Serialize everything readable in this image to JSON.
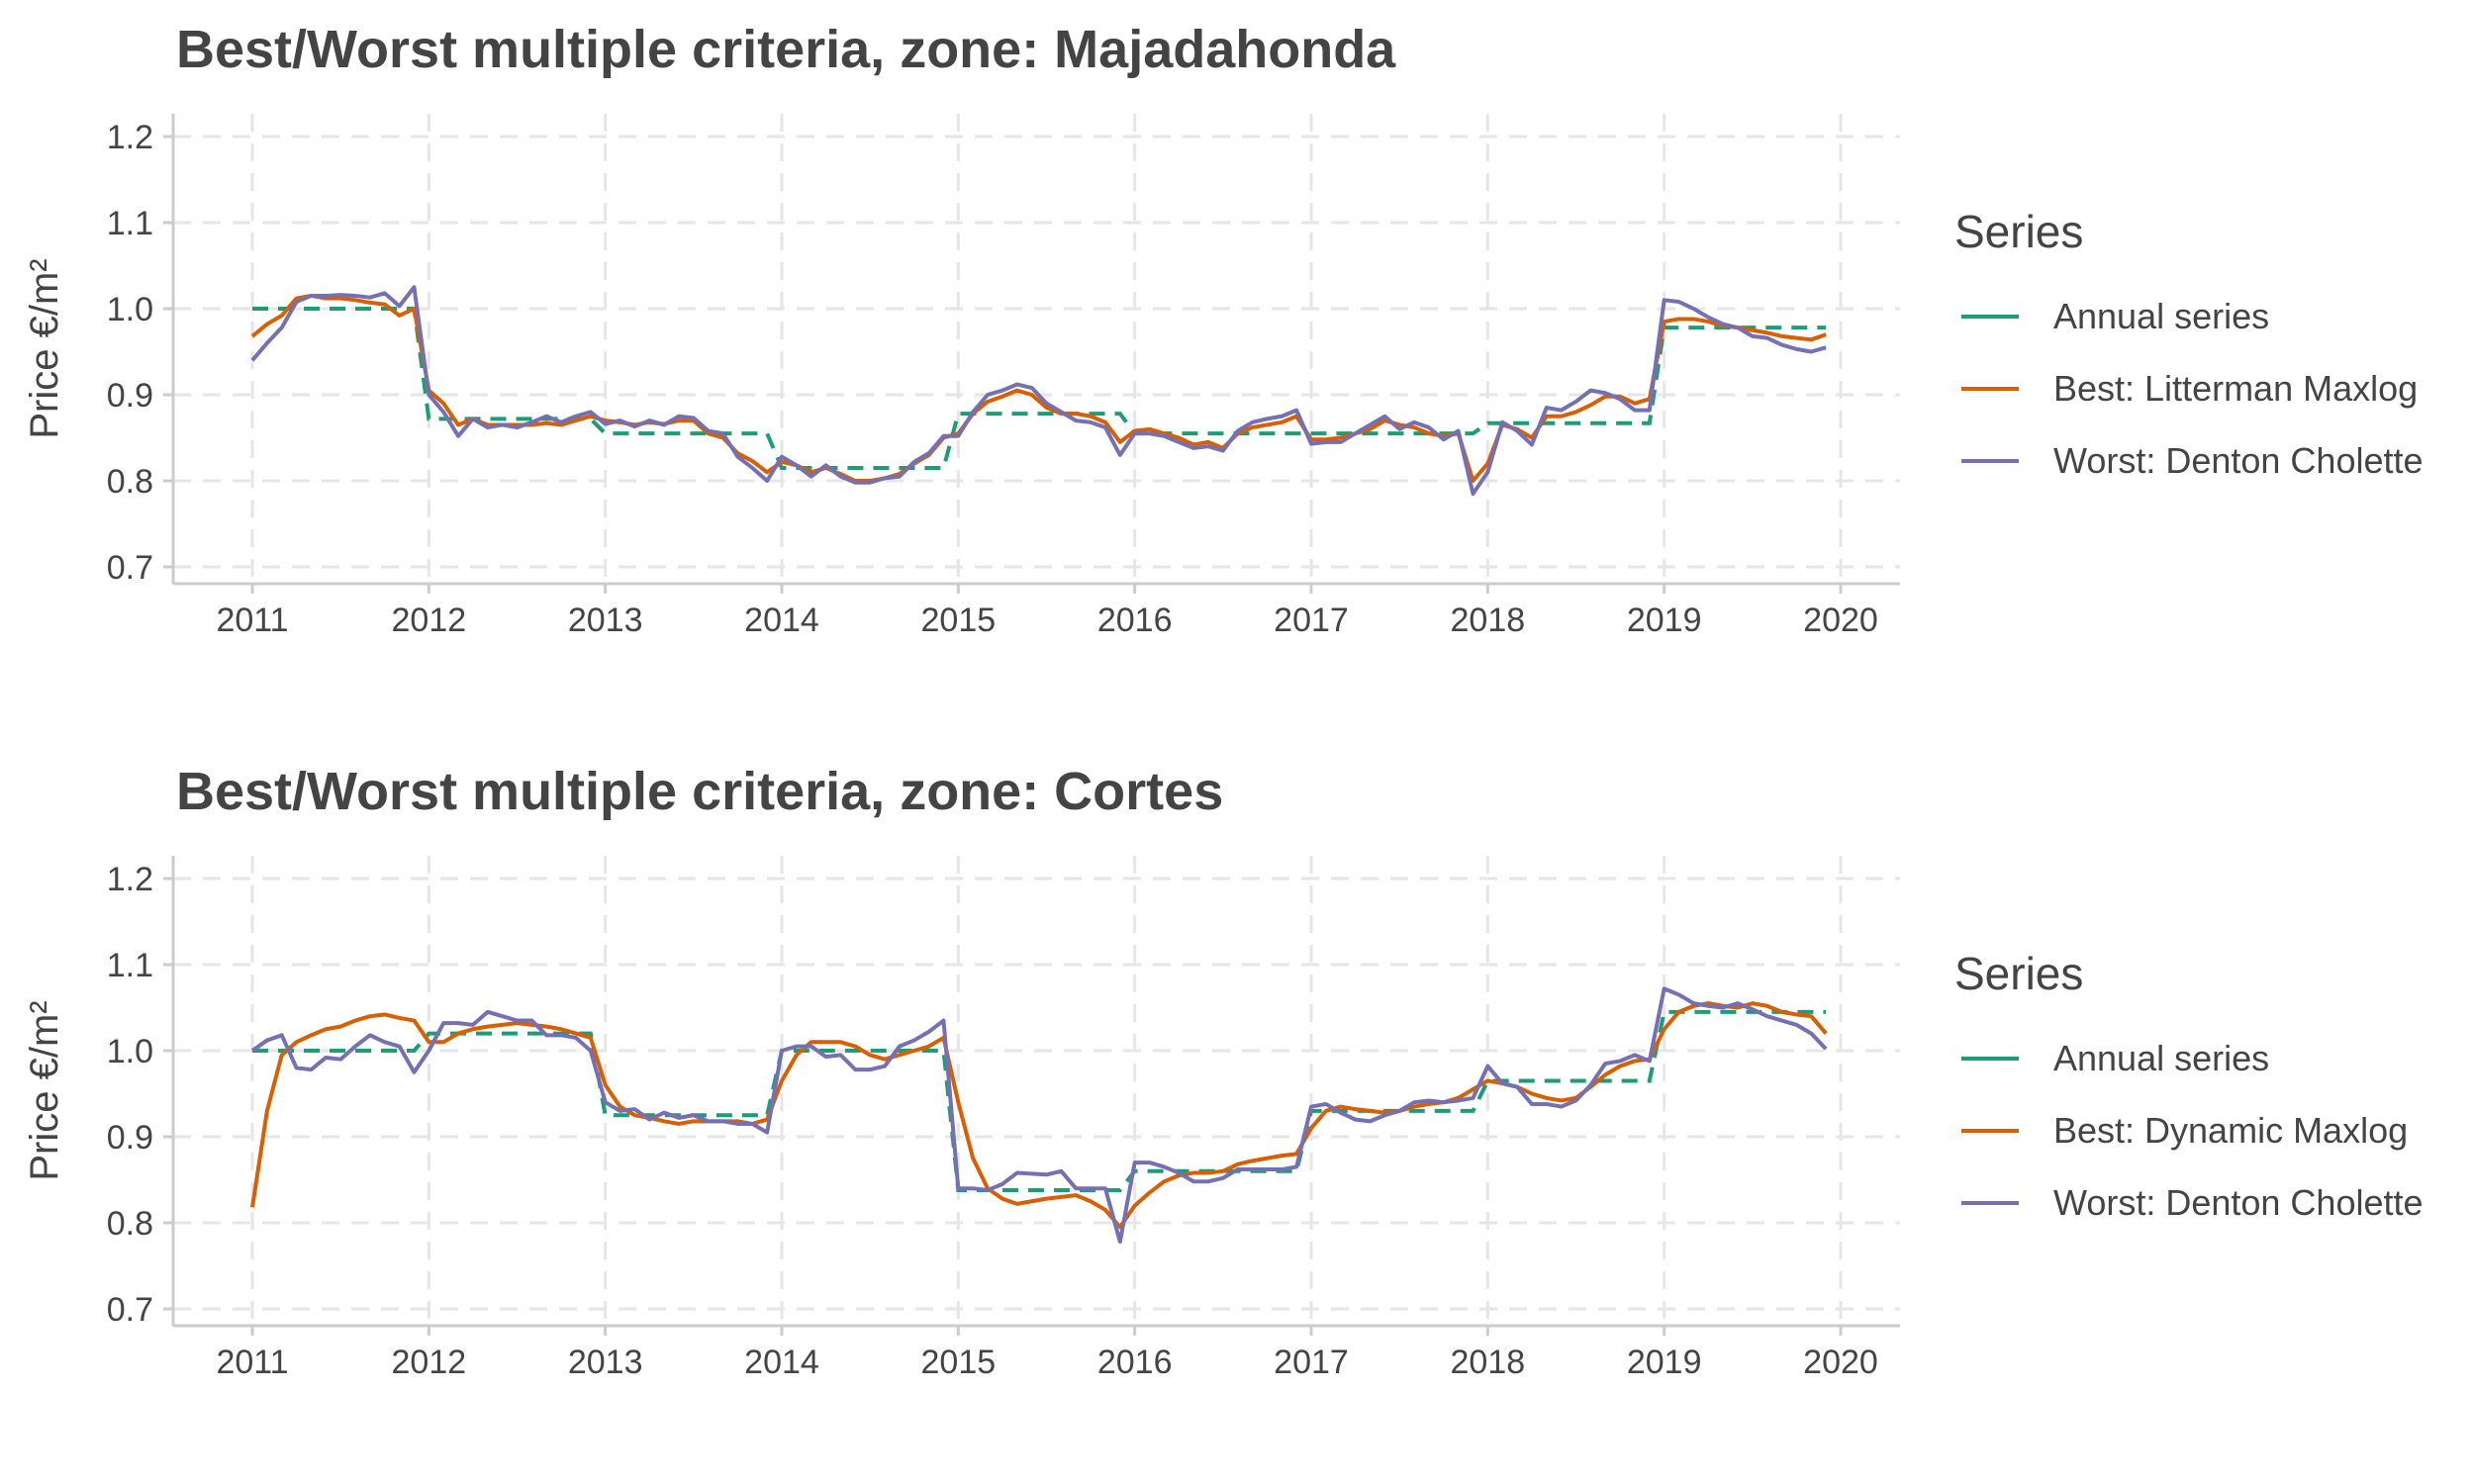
{
  "chart_data": [
    {
      "type": "line",
      "title": "Best/Worst multiple criteria, zone: Majadahonda",
      "xlabel": "",
      "ylabel": "Price €/m²",
      "ylim": [
        0.7,
        1.2
      ],
      "xlim": [
        2011,
        2020
      ],
      "yticks": [
        "0.7",
        "0.8",
        "0.9",
        "1.0",
        "1.1",
        "1.2"
      ],
      "xticks": [
        "2011",
        "2012",
        "2013",
        "2014",
        "2015",
        "2016",
        "2017",
        "2018",
        "2019",
        "2020"
      ],
      "grid": true,
      "legend_title": "Series",
      "legend_position": "right",
      "colors": {
        "annual": "#1b9e77",
        "best": "#d95f02",
        "worst": "#7570b3"
      },
      "annual_series": {
        "name": "Annual series",
        "years": [
          2011,
          2012,
          2013,
          2014,
          2015,
          2016,
          2017,
          2018,
          2019
        ],
        "values": [
          1.0,
          0.872,
          0.855,
          0.815,
          0.878,
          0.855,
          0.855,
          0.867,
          0.978
        ]
      },
      "series": [
        {
          "name": "Best: Litterman Maxlog",
          "values": [
            0.968,
            0.982,
            0.992,
            1.012,
            1.015,
            1.012,
            1.012,
            1.01,
            1.007,
            1.005,
            0.992,
            1.0,
            0.905,
            0.89,
            0.865,
            0.872,
            0.865,
            0.865,
            0.865,
            0.865,
            0.867,
            0.865,
            0.87,
            0.875,
            0.87,
            0.868,
            0.865,
            0.868,
            0.866,
            0.87,
            0.87,
            0.855,
            0.85,
            0.832,
            0.823,
            0.81,
            0.822,
            0.818,
            0.81,
            0.815,
            0.808,
            0.8,
            0.8,
            0.803,
            0.808,
            0.82,
            0.83,
            0.85,
            0.855,
            0.878,
            0.892,
            0.898,
            0.905,
            0.9,
            0.885,
            0.878,
            0.878,
            0.875,
            0.868,
            0.845,
            0.858,
            0.86,
            0.855,
            0.85,
            0.842,
            0.845,
            0.838,
            0.855,
            0.862,
            0.865,
            0.868,
            0.875,
            0.848,
            0.848,
            0.85,
            0.855,
            0.86,
            0.87,
            0.865,
            0.862,
            0.855,
            0.852,
            0.855,
            0.8,
            0.82,
            0.865,
            0.86,
            0.85,
            0.875,
            0.875,
            0.88,
            0.888,
            0.898,
            0.898,
            0.89,
            0.895,
            0.985,
            0.988,
            0.988,
            0.985,
            0.98,
            0.978,
            0.975,
            0.972,
            0.968,
            0.966,
            0.964,
            0.97
          ]
        },
        {
          "name": "Worst: Denton Cholette",
          "values": [
            0.94,
            0.96,
            0.978,
            1.008,
            1.015,
            1.015,
            1.016,
            1.015,
            1.013,
            1.018,
            1.003,
            1.025,
            0.9,
            0.88,
            0.852,
            0.872,
            0.862,
            0.865,
            0.862,
            0.868,
            0.875,
            0.868,
            0.875,
            0.88,
            0.866,
            0.87,
            0.863,
            0.87,
            0.865,
            0.875,
            0.873,
            0.858,
            0.855,
            0.828,
            0.815,
            0.8,
            0.828,
            0.818,
            0.805,
            0.818,
            0.805,
            0.798,
            0.798,
            0.803,
            0.805,
            0.822,
            0.832,
            0.852,
            0.852,
            0.88,
            0.9,
            0.905,
            0.912,
            0.908,
            0.89,
            0.88,
            0.87,
            0.868,
            0.862,
            0.83,
            0.855,
            0.855,
            0.852,
            0.845,
            0.838,
            0.84,
            0.835,
            0.858,
            0.868,
            0.872,
            0.875,
            0.882,
            0.843,
            0.845,
            0.845,
            0.855,
            0.865,
            0.875,
            0.86,
            0.868,
            0.862,
            0.848,
            0.858,
            0.785,
            0.81,
            0.868,
            0.858,
            0.842,
            0.885,
            0.882,
            0.892,
            0.905,
            0.902,
            0.895,
            0.882,
            0.882,
            1.01,
            1.008,
            1.0,
            0.99,
            0.982,
            0.978,
            0.968,
            0.966,
            0.958,
            0.953,
            0.95,
            0.955
          ]
        }
      ]
    },
    {
      "type": "line",
      "title": "Best/Worst multiple criteria, zone: Cortes",
      "xlabel": "",
      "ylabel": "Price €/m²",
      "ylim": [
        0.7,
        1.2
      ],
      "xlim": [
        2011,
        2020
      ],
      "yticks": [
        "0.7",
        "0.8",
        "0.9",
        "1.0",
        "1.1",
        "1.2"
      ],
      "xticks": [
        "2011",
        "2012",
        "2013",
        "2014",
        "2015",
        "2016",
        "2017",
        "2018",
        "2019",
        "2020"
      ],
      "grid": true,
      "legend_title": "Series",
      "legend_position": "right",
      "colors": {
        "annual": "#1b9e77",
        "best": "#d95f02",
        "worst": "#7570b3"
      },
      "annual_series": {
        "name": "Annual series",
        "years": [
          2011,
          2012,
          2013,
          2014,
          2015,
          2016,
          2017,
          2018,
          2019
        ],
        "values": [
          1.0,
          1.02,
          0.925,
          1.0,
          0.838,
          0.86,
          0.93,
          0.965,
          1.045
        ]
      },
      "series": [
        {
          "name": "Best: Dynamic Maxlog",
          "values": [
            0.818,
            0.93,
            0.995,
            1.01,
            1.018,
            1.025,
            1.028,
            1.035,
            1.04,
            1.042,
            1.038,
            1.035,
            1.01,
            1.01,
            1.02,
            1.025,
            1.028,
            1.03,
            1.032,
            1.03,
            1.028,
            1.025,
            1.02,
            1.015,
            0.96,
            0.935,
            0.925,
            0.922,
            0.918,
            0.915,
            0.918,
            0.918,
            0.918,
            0.918,
            0.915,
            0.92,
            0.965,
            0.995,
            1.01,
            1.01,
            1.01,
            1.005,
            0.995,
            0.99,
            0.995,
            1.0,
            1.005,
            1.015,
            0.94,
            0.875,
            0.84,
            0.828,
            0.822,
            0.825,
            0.828,
            0.83,
            0.832,
            0.825,
            0.815,
            0.795,
            0.82,
            0.835,
            0.848,
            0.855,
            0.858,
            0.858,
            0.86,
            0.868,
            0.872,
            0.875,
            0.878,
            0.88,
            0.91,
            0.93,
            0.935,
            0.932,
            0.93,
            0.928,
            0.93,
            0.935,
            0.938,
            0.94,
            0.945,
            0.955,
            0.965,
            0.962,
            0.958,
            0.95,
            0.945,
            0.942,
            0.945,
            0.958,
            0.972,
            0.982,
            0.988,
            0.99,
            1.025,
            1.045,
            1.052,
            1.055,
            1.052,
            1.05,
            1.055,
            1.052,
            1.045,
            1.042,
            1.04,
            1.02
          ]
        },
        {
          "name": "Worst: Denton Cholette",
          "values": [
            1.0,
            1.012,
            1.018,
            0.98,
            0.978,
            0.992,
            0.99,
            1.005,
            1.018,
            1.01,
            1.005,
            0.975,
            1.0,
            1.032,
            1.032,
            1.03,
            1.045,
            1.04,
            1.035,
            1.035,
            1.018,
            1.018,
            1.015,
            1.0,
            0.94,
            0.93,
            0.932,
            0.92,
            0.928,
            0.922,
            0.925,
            0.918,
            0.918,
            0.915,
            0.915,
            0.905,
            1.0,
            1.005,
            1.005,
            0.993,
            0.995,
            0.978,
            0.978,
            0.982,
            1.005,
            1.012,
            1.022,
            1.035,
            0.84,
            0.84,
            0.838,
            0.845,
            0.858,
            0.857,
            0.856,
            0.86,
            0.84,
            0.84,
            0.84,
            0.778,
            0.87,
            0.87,
            0.865,
            0.858,
            0.848,
            0.848,
            0.852,
            0.862,
            0.862,
            0.862,
            0.862,
            0.865,
            0.935,
            0.938,
            0.928,
            0.92,
            0.918,
            0.925,
            0.93,
            0.94,
            0.942,
            0.94,
            0.942,
            0.945,
            0.982,
            0.962,
            0.958,
            0.938,
            0.938,
            0.935,
            0.942,
            0.96,
            0.985,
            0.988,
            0.995,
            0.988,
            1.072,
            1.065,
            1.055,
            1.052,
            1.05,
            1.055,
            1.048,
            1.04,
            1.035,
            1.03,
            1.02,
            1.002
          ]
        }
      ]
    }
  ]
}
